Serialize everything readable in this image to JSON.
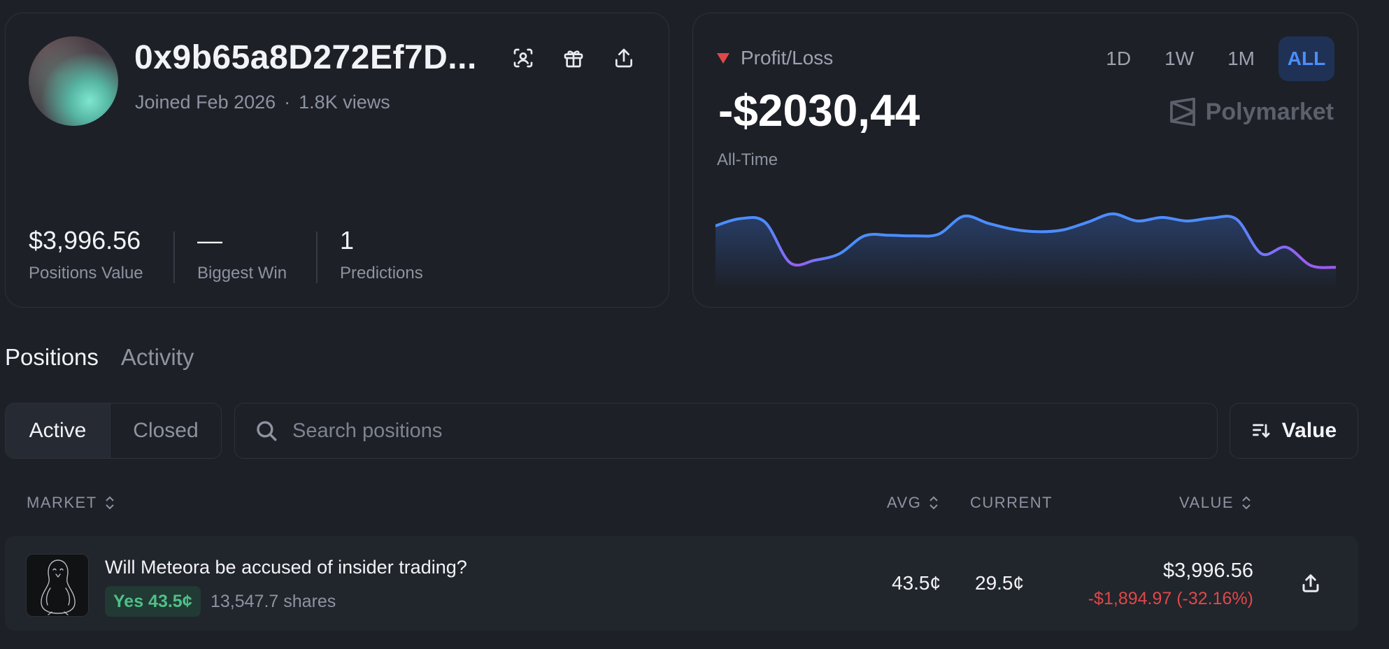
{
  "profile": {
    "username": "0x9b65a8D272Ef7D...",
    "joined": "Joined Feb 2026",
    "views": "1.8K views",
    "stats": [
      {
        "value": "$3,996.56",
        "label": "Positions Value"
      },
      {
        "value": "—",
        "label": "Biggest Win"
      },
      {
        "value": "1",
        "label": "Predictions"
      }
    ],
    "icons": [
      "scan-user-icon",
      "gift-icon",
      "share-icon"
    ]
  },
  "pnl": {
    "label": "Profit/Loss",
    "value": "-$2030,44",
    "period_label": "All-Time",
    "ranges": [
      "1D",
      "1W",
      "1M",
      "ALL"
    ],
    "active_range": "ALL",
    "brand": "Polymarket",
    "colors": {
      "line_start": "#4c8dff",
      "line_end": "#9c5cf0",
      "down": "#e04848"
    }
  },
  "chart_data": {
    "type": "area",
    "y_relative": [
      0.72,
      0.84,
      0.78,
      0.1,
      0.14,
      0.25,
      0.55,
      0.56,
      0.55,
      0.58,
      0.88,
      0.76,
      0.66,
      0.62,
      0.65,
      0.78,
      0.92,
      0.8,
      0.86,
      0.8,
      0.85,
      0.83,
      0.25,
      0.36,
      0.05,
      0.02
    ],
    "grid": false
  },
  "tabs": {
    "items": [
      "Positions",
      "Activity"
    ],
    "active": "Positions"
  },
  "filters": {
    "segment": [
      "Active",
      "Closed"
    ],
    "active_segment": "Active",
    "search_placeholder": "Search positions",
    "sort_label": "Value"
  },
  "table": {
    "columns": {
      "market": "MARKET",
      "avg": "AVG",
      "current": "CURRENT",
      "value": "VALUE"
    },
    "rows": [
      {
        "title": "Will Meteora be accused of insider trading?",
        "outcome": "Yes 43.5¢",
        "shares": "13,547.7 shares",
        "avg": "43.5¢",
        "current": "29.5¢",
        "value": "$3,996.56",
        "change": "-$1,894.97 (-32.16%)"
      }
    ]
  }
}
